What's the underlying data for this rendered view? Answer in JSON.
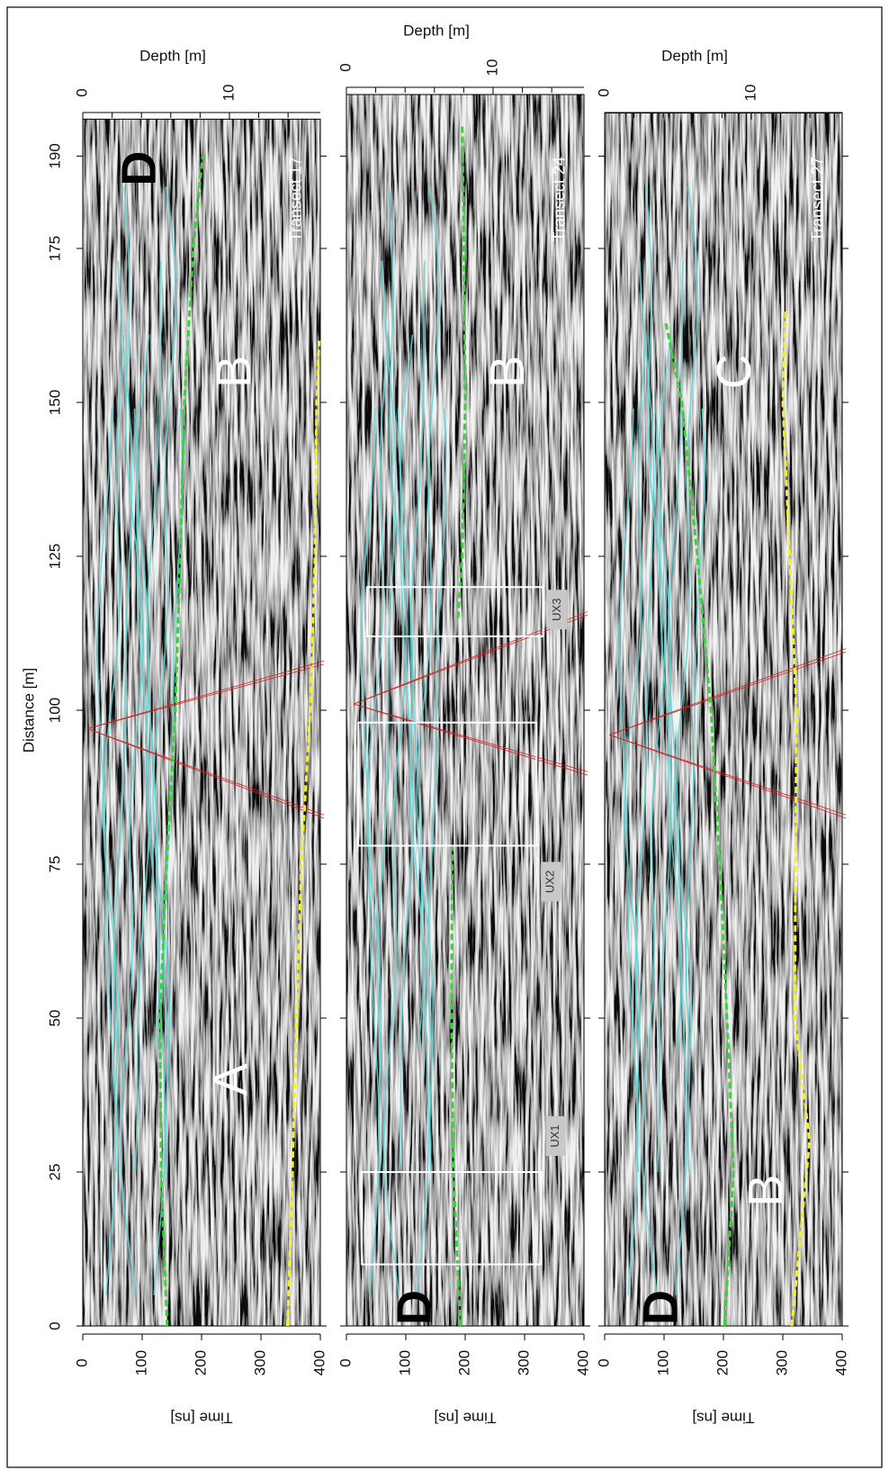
{
  "chart_data": [
    {
      "type": "radargram",
      "title": "Transect 17",
      "xlabel": "Distance [m]",
      "xlim": [
        0,
        196
      ],
      "xticks": [
        0,
        25,
        50,
        75,
        100,
        125,
        150,
        175,
        190
      ],
      "xtick_labels": true,
      "ylabel": "Time [ns]",
      "ylim": [
        0,
        400
      ],
      "yticks": [
        0,
        100,
        200,
        300,
        400
      ],
      "y2label": "Depth [m]",
      "y2lim": [
        0,
        16.2
      ],
      "y2ticks": [
        0,
        10
      ],
      "y2minor_ticks": [
        2,
        4,
        6,
        8,
        12,
        14
      ],
      "annotations": [
        "A",
        "B",
        "D"
      ],
      "annotation_colors": [
        "#ffffff",
        "#ffffff",
        "#000000"
      ],
      "series": [
        {
          "color": "#3ad13a",
          "x": [
            0,
            25,
            50,
            75,
            100,
            125,
            150,
            175,
            190
          ],
          "values": [
            142,
            132,
            130,
            141,
            156,
            164,
            171,
            186,
            202
          ]
        },
        {
          "color": "#f2f22a",
          "x": [
            0,
            25,
            50,
            75,
            100,
            125,
            150,
            160
          ],
          "values": [
            345,
            353,
            360,
            368,
            383,
            391,
            394,
            398
          ]
        }
      ]
    },
    {
      "type": "radargram",
      "title": "Transect 24",
      "xlim": [
        0,
        200
      ],
      "xticks": [
        0,
        25,
        50,
        75,
        100,
        125,
        150,
        175,
        190
      ],
      "xtick_labels": false,
      "ylabel": "Time [ns]",
      "ylim": [
        0,
        400
      ],
      "yticks": [
        0,
        100,
        200,
        300,
        400
      ],
      "y2label": "Depth [m]",
      "y2lim": [
        0,
        16.2
      ],
      "y2ticks": [
        0,
        10
      ],
      "y2minor_ticks": [
        2,
        4,
        6,
        8,
        12,
        14
      ],
      "annotations": [
        "B",
        "D"
      ],
      "annotation_colors": [
        "#ffffff",
        "#000000"
      ],
      "series": [
        {
          "color": "#3ad13a",
          "x": [
            0,
            25,
            50,
            75,
            78,
            96,
            115,
            125,
            150,
            175,
            195
          ],
          "values": [
            192,
            180,
            177,
            178,
            178,
            null,
            188,
            195,
            200,
            198,
            195
          ]
        }
      ],
      "boxes": [
        {
          "label": "UX1",
          "xlim": [
            10,
            25
          ],
          "ylim": [
            26,
            328
          ]
        },
        {
          "label": "UX2",
          "xlim": [
            78,
            98
          ],
          "ylim": [
            20,
            320
          ]
        },
        {
          "label": "UX3",
          "xlim": [
            112,
            120
          ],
          "ylim": [
            35,
            331
          ]
        }
      ]
    },
    {
      "type": "radargram",
      "title": "Transect 27",
      "xlim": [
        0,
        197
      ],
      "xticks": [
        0,
        25,
        50,
        75,
        100,
        125,
        150,
        175,
        190
      ],
      "xtick_labels": false,
      "ylabel": "Time [ns]",
      "ylim": [
        0,
        400
      ],
      "yticks": [
        0,
        100,
        200,
        300,
        400
      ],
      "y2label": "Depth [m]",
      "y2lim": [
        0,
        16.2
      ],
      "y2ticks": [
        0,
        10
      ],
      "y2minor_ticks": [
        2,
        4,
        6,
        8,
        12,
        14
      ],
      "annotations": [
        "C",
        "B",
        "D"
      ],
      "annotation_colors": [
        "#ffffff",
        "#ffffff",
        "#000000"
      ],
      "series": [
        {
          "color": "#3ad13a",
          "x": [
            0,
            25,
            50,
            75,
            100,
            125,
            150,
            163
          ],
          "values": [
            202,
            217,
            206,
            194,
            179,
            156,
            130,
            103
          ]
        },
        {
          "color": "#f2f22a",
          "x": [
            0,
            30,
            50,
            100,
            150,
            165
          ],
          "values": [
            315,
            345,
            320,
            323,
            300,
            305
          ]
        }
      ]
    }
  ]
}
